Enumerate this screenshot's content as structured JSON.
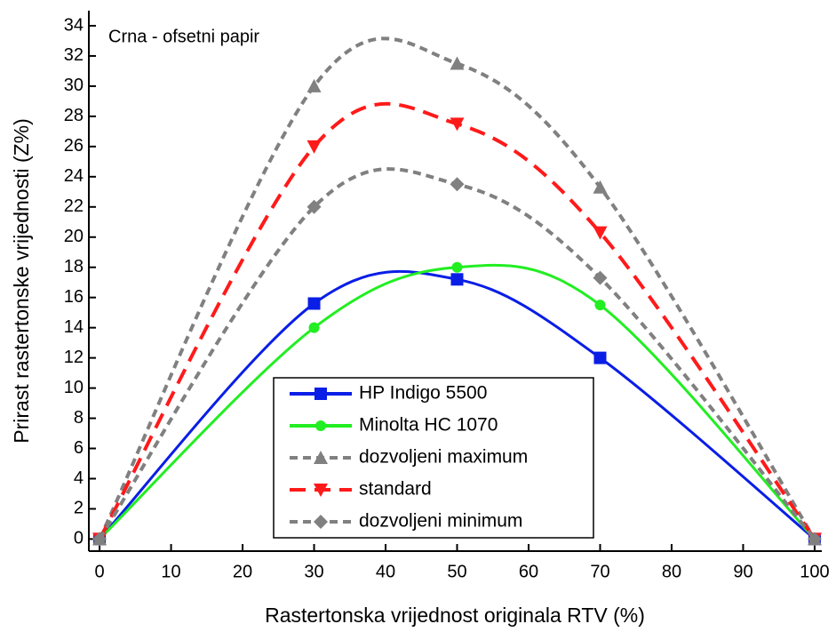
{
  "chart_data": {
    "type": "line",
    "annotation": "Crna - ofsetni papir",
    "x_label": "Rastertonska vrijednost originala RTV (%)",
    "y_label": "Prirast rastertonske vrijednosti (Z%)",
    "x": [
      0,
      30,
      50,
      70,
      100
    ],
    "series": [
      {
        "name": "HP Indigo 5500",
        "color": "#0a1ee6",
        "linestyle": "solid",
        "marker": "square",
        "values": [
          0,
          15.6,
          17.2,
          12,
          0
        ]
      },
      {
        "name": "Minolta HC 1070",
        "color": "#22ee22",
        "linestyle": "solid",
        "marker": "circle",
        "values": [
          0,
          14,
          18,
          15.5,
          0
        ]
      },
      {
        "name": "dozvoljeni maximum",
        "color": "#808080",
        "linestyle": "dotted",
        "marker": "triangle-up",
        "values": [
          0,
          30,
          31.5,
          23.3,
          0
        ]
      },
      {
        "name": "standard",
        "color": "#ff1a1a",
        "linestyle": "dashed",
        "marker": "triangle-down",
        "values": [
          0,
          26,
          27.5,
          20.3,
          0
        ]
      },
      {
        "name": "dozvoljeni minimum",
        "color": "#808080",
        "linestyle": "dotted",
        "marker": "diamond",
        "values": [
          0,
          22,
          23.5,
          17.3,
          0
        ]
      }
    ],
    "xlim": [
      -1.5,
      101
    ],
    "ylim": [
      -0.8,
      35
    ],
    "xticks": [
      0,
      10,
      20,
      30,
      40,
      50,
      60,
      70,
      80,
      90,
      100
    ],
    "yticks": [
      0,
      2,
      4,
      6,
      8,
      10,
      12,
      14,
      16,
      18,
      20,
      22,
      24,
      26,
      28,
      30,
      32,
      34
    ],
    "legend": "lower center"
  }
}
